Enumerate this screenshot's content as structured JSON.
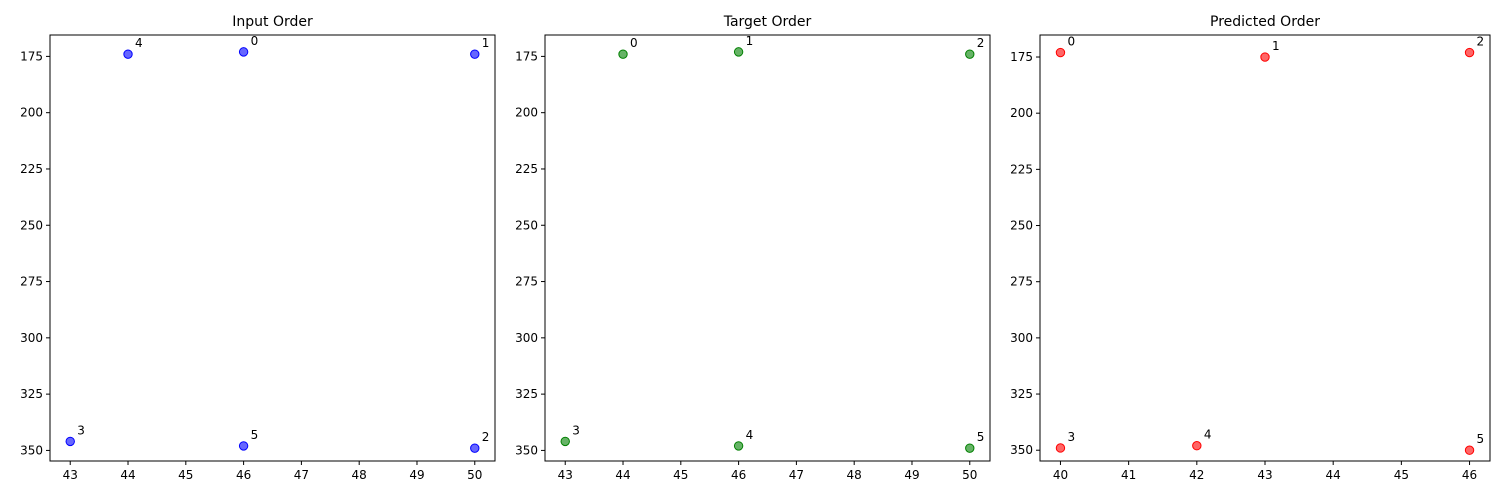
{
  "chart_data": [
    {
      "type": "scatter",
      "title": "Input Order",
      "color": "#0000ff",
      "xlim": [
        42.65,
        50.35
      ],
      "ylim": [
        354.7,
        165.5
      ],
      "y_inverted": true,
      "grid": false,
      "xticks": [
        43,
        44,
        45,
        46,
        47,
        48,
        49,
        50
      ],
      "yticks": [
        175,
        200,
        225,
        250,
        275,
        300,
        325,
        350
      ],
      "points": [
        {
          "label": "0",
          "x": 46,
          "y": 173
        },
        {
          "label": "1",
          "x": 50,
          "y": 174
        },
        {
          "label": "2",
          "x": 50,
          "y": 349
        },
        {
          "label": "3",
          "x": 43,
          "y": 346
        },
        {
          "label": "4",
          "x": 44,
          "y": 174
        },
        {
          "label": "5",
          "x": 46,
          "y": 348
        }
      ]
    },
    {
      "type": "scatter",
      "title": "Target Order",
      "color": "#008000",
      "xlim": [
        42.65,
        50.35
      ],
      "ylim": [
        354.7,
        165.5
      ],
      "y_inverted": true,
      "grid": false,
      "xticks": [
        43,
        44,
        45,
        46,
        47,
        48,
        49,
        50
      ],
      "yticks": [
        175,
        200,
        225,
        250,
        275,
        300,
        325,
        350
      ],
      "points": [
        {
          "label": "0",
          "x": 44,
          "y": 174
        },
        {
          "label": "1",
          "x": 46,
          "y": 173
        },
        {
          "label": "2",
          "x": 50,
          "y": 174
        },
        {
          "label": "3",
          "x": 43,
          "y": 346
        },
        {
          "label": "4",
          "x": 46,
          "y": 348
        },
        {
          "label": "5",
          "x": 50,
          "y": 349
        }
      ]
    },
    {
      "type": "scatter",
      "title": "Predicted Order",
      "color": "#ff0000",
      "xlim": [
        39.7,
        46.3
      ],
      "ylim": [
        354.8,
        165.2
      ],
      "y_inverted": true,
      "grid": false,
      "xticks": [
        40,
        41,
        42,
        43,
        44,
        45,
        46
      ],
      "yticks": [
        175,
        200,
        225,
        250,
        275,
        300,
        325,
        350
      ],
      "points": [
        {
          "label": "0",
          "x": 40,
          "y": 173
        },
        {
          "label": "1",
          "x": 43,
          "y": 175
        },
        {
          "label": "2",
          "x": 46,
          "y": 173
        },
        {
          "label": "3",
          "x": 40,
          "y": 349
        },
        {
          "label": "4",
          "x": 42,
          "y": 348
        },
        {
          "label": "5",
          "x": 46,
          "y": 350
        }
      ]
    }
  ]
}
